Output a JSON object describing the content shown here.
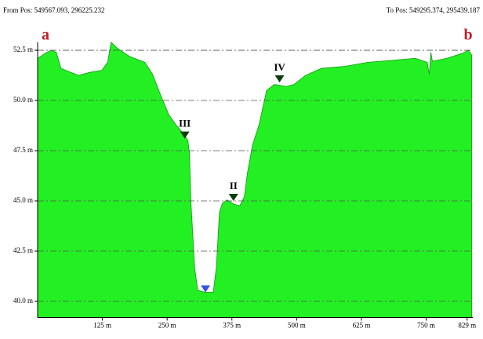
{
  "chart_data": {
    "type": "area",
    "from_label": "From Pos: 549567.093, 296225.232",
    "to_label": "To Pos: 549295.374, 295439.187",
    "start_label": "a",
    "end_label": "b",
    "color": "#22f022",
    "grid": true,
    "x": [
      0,
      6,
      15,
      26,
      36,
      45,
      64,
      79,
      101,
      124,
      135,
      142,
      154,
      177,
      207,
      222,
      237,
      253,
      268,
      283,
      290,
      293,
      296,
      303,
      309,
      324,
      339,
      345,
      351,
      357,
      366,
      378,
      390,
      399,
      405,
      415,
      427,
      442,
      457,
      480,
      495,
      517,
      548,
      593,
      638,
      684,
      729,
      752,
      756,
      759,
      762,
      790,
      820,
      832,
      838
    ],
    "values": [
      52.1,
      52.2,
      52.35,
      52.5,
      52.4,
      51.6,
      51.4,
      51.25,
      51.4,
      51.5,
      51.9,
      52.9,
      52.6,
      52.2,
      51.9,
      51.3,
      50.3,
      49.3,
      48.75,
      48.3,
      48.0,
      47.4,
      44.9,
      41.7,
      40.55,
      40.45,
      40.45,
      41.7,
      44.45,
      44.9,
      45.05,
      44.85,
      44.75,
      45.2,
      46.4,
      47.8,
      48.75,
      50.5,
      50.8,
      50.7,
      50.8,
      51.25,
      51.6,
      51.7,
      51.9,
      52.0,
      52.1,
      51.9,
      51.3,
      52.4,
      51.95,
      52.1,
      52.35,
      52.5,
      52.25
    ],
    "xlim": [
      0,
      840
    ],
    "ylim": [
      39.2,
      52.9
    ],
    "xticks": [
      {
        "value": 125,
        "label": "125 m"
      },
      {
        "value": 250,
        "label": "250 m"
      },
      {
        "value": 375,
        "label": "375 m"
      },
      {
        "value": 500,
        "label": "500 m"
      },
      {
        "value": 625,
        "label": "625 m"
      },
      {
        "value": 750,
        "label": "750 m"
      },
      {
        "value": 829,
        "label": "829 m"
      }
    ],
    "yticks": [
      {
        "value": 40.0,
        "label": "40.0 m"
      },
      {
        "value": 42.5,
        "label": "42.5 m"
      },
      {
        "value": 45.0,
        "label": "45.0 m"
      },
      {
        "value": 47.5,
        "label": "47.5 m"
      },
      {
        "value": 50.0,
        "label": "50.0 m"
      },
      {
        "value": 52.5,
        "label": "52.5 m"
      }
    ],
    "markers": [
      {
        "label": "III",
        "x": 284,
        "y": 48.1,
        "color": "#0b3d0b"
      },
      {
        "label": "II",
        "x": 378,
        "y": 45.0,
        "color": "#0b3d0b"
      },
      {
        "label": "IV",
        "x": 467,
        "y": 50.9,
        "color": "#0b3d0b"
      }
    ],
    "min_marker": {
      "x": 324,
      "y": 40.6,
      "color": "#3355dd"
    }
  }
}
